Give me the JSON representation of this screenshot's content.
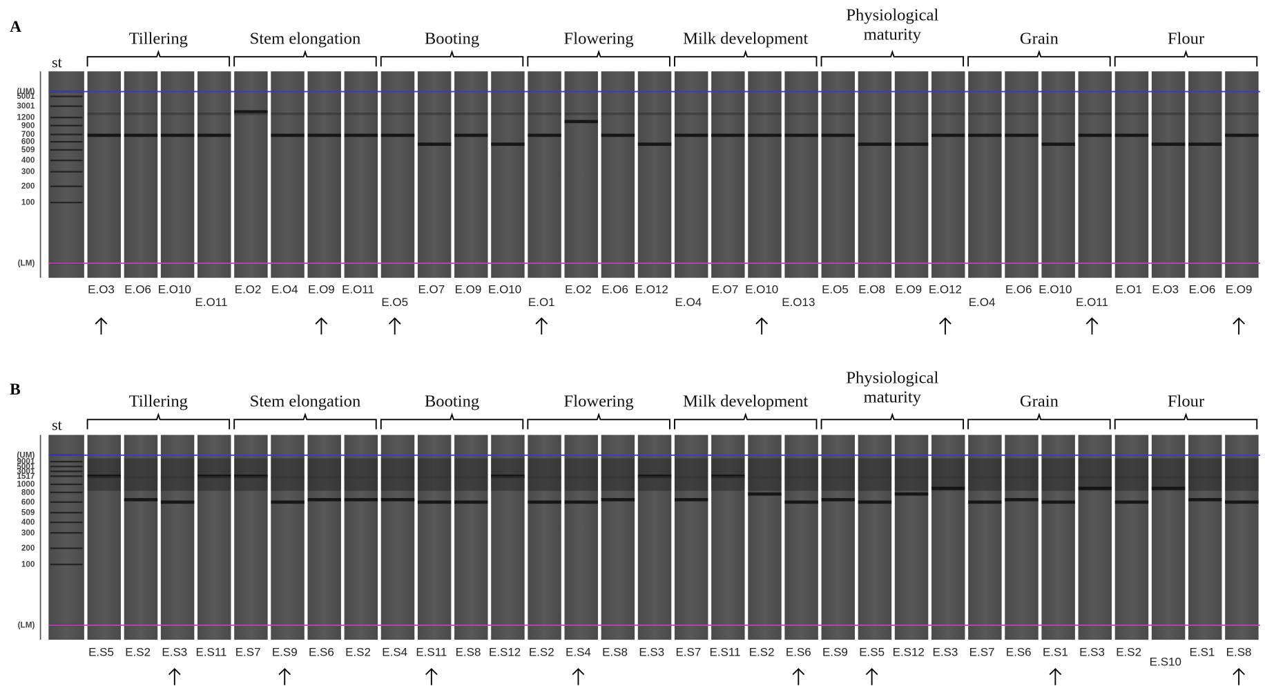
{
  "panels": [
    {
      "label": "A",
      "st": "st",
      "ladder": [
        "(UM)",
        "5001",
        "3001",
        "1200",
        "900",
        "700",
        "600",
        "509",
        "400",
        "300",
        "200",
        "100",
        "(LM)"
      ],
      "stages": [
        [
          "Tillering"
        ],
        [
          "Stem elongation"
        ],
        [
          "Booting"
        ],
        [
          "Flowering"
        ],
        [
          "Milk development"
        ],
        [
          "Physiological",
          "maturity"
        ],
        [
          "Grain"
        ],
        [
          "Flour"
        ]
      ],
      "lanes": [
        "E.O3",
        "E.O6",
        "E.O10",
        "E.O11",
        "E.O2",
        "E.O4",
        "E.O9",
        "E.O11",
        "E.O5",
        "E.O7",
        "E.O9",
        "E.O10",
        "E.O1",
        "E.O2",
        "E.O6",
        "E.O12",
        "E.O4",
        "E.O7",
        "E.O10",
        "E.O13",
        "E.O5",
        "E.O8",
        "E.O9",
        "E.O12",
        "E.O4",
        "E.O6",
        "E.O10",
        "E.O11",
        "E.O1",
        "E.O3",
        "E.O6",
        "E.O9"
      ]
    },
    {
      "label": "B",
      "st": "st",
      "ladder": [
        "(UM)",
        "9001",
        "5001",
        "3001",
        "1517",
        "1000",
        "800",
        "600",
        "509",
        "400",
        "300",
        "200",
        "100",
        "(LM)"
      ],
      "stages": [
        [
          "Tillering"
        ],
        [
          "Stem elongation"
        ],
        [
          "Booting"
        ],
        [
          "Flowering"
        ],
        [
          "Milk development"
        ],
        [
          "Physiological",
          "maturity"
        ],
        [
          "Grain"
        ],
        [
          "Flour"
        ]
      ],
      "lanes": [
        "E.S5",
        "E.S2",
        "E.S3",
        "E.S11",
        "E.S7",
        "E.S9",
        "E.S6",
        "E.S2",
        "E.S4",
        "E.S11",
        "E.S8",
        "E.S12",
        "E.S2",
        "E.S4",
        "E.S8",
        "E.S3",
        "E.S7",
        "E.S11",
        "E.S2",
        "E.S6",
        "E.S9",
        "E.S5",
        "E.S12",
        "E.S3",
        "E.S7",
        "E.S6",
        "E.S1",
        "E.S3",
        "E.S2",
        "E.S10",
        "E.S1",
        "E.S8"
      ]
    }
  ]
}
